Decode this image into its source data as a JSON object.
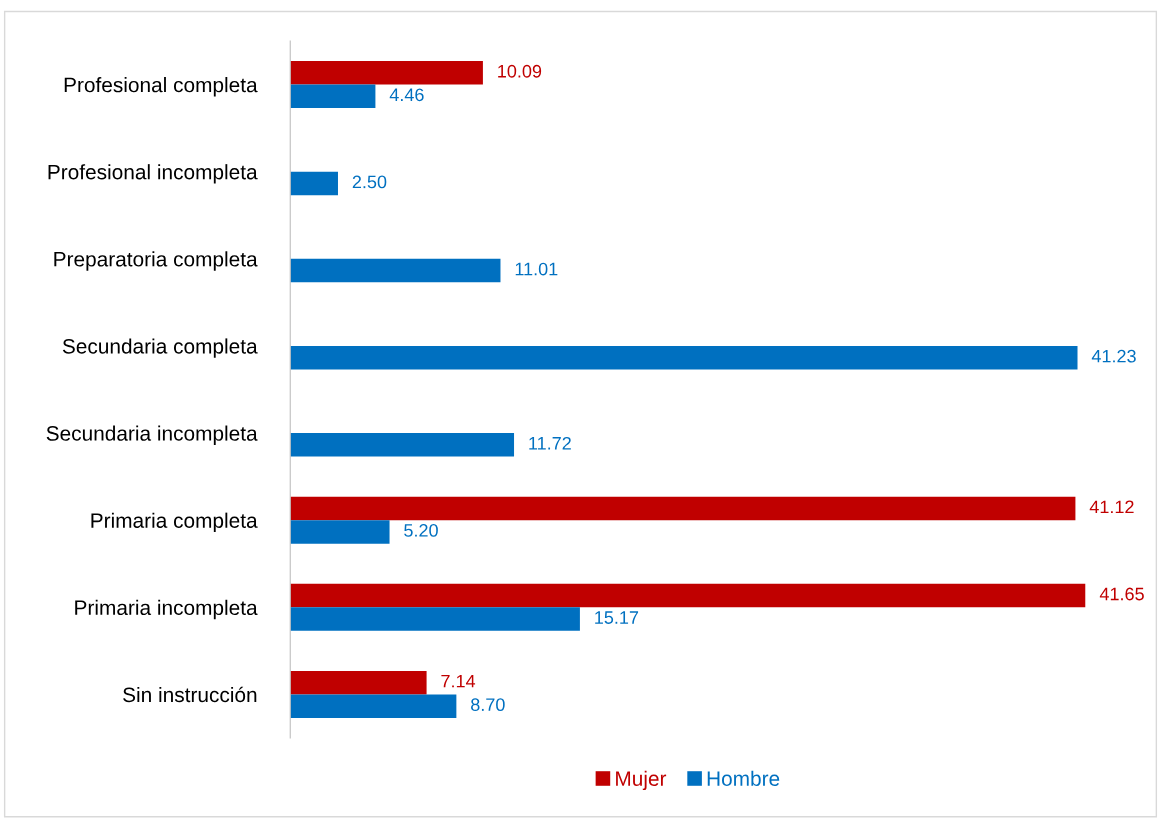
{
  "chart_data": {
    "type": "bar",
    "orientation": "horizontal",
    "categories": [
      "Profesional completa",
      "Profesional incompleta",
      "Preparatoria completa",
      "Secundaria completa",
      "Secundaria incompleta",
      "Primaria completa",
      "Primaria incompleta",
      "Sin instrucción"
    ],
    "series": [
      {
        "name": "Mujer",
        "color": "#c00000",
        "values": [
          10.09,
          null,
          null,
          null,
          null,
          41.12,
          41.65,
          7.14
        ],
        "value_labels": [
          "10.09",
          null,
          null,
          null,
          null,
          "41.12",
          "41.65",
          "7.14"
        ]
      },
      {
        "name": "Hombre",
        "color": "#0070c0",
        "values": [
          4.46,
          2.5,
          11.01,
          41.23,
          11.72,
          5.2,
          15.17,
          8.7
        ],
        "value_labels": [
          "4.46",
          "2.50",
          "11.01",
          "41.23",
          "11.72",
          "5.20",
          "15.17",
          "8.70"
        ]
      }
    ],
    "tick_labels": "y",
    "grid": false,
    "legend": "bottom"
  }
}
